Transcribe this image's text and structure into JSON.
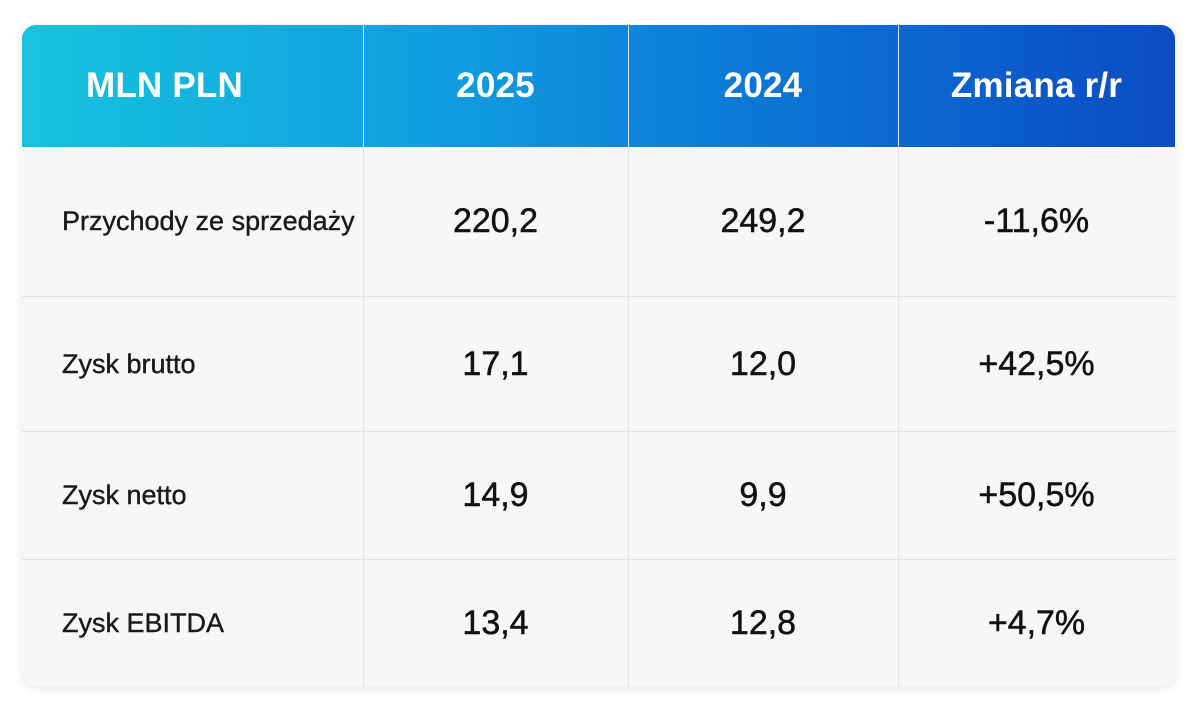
{
  "table": {
    "headers": [
      "MLN PLN",
      "2025",
      "2024",
      "Zmiana r/r"
    ],
    "rows": [
      {
        "label": "Przychody ze sprzedaży",
        "y2025": "220,2",
        "y2024": "249,2",
        "change": "-11,6%"
      },
      {
        "label": "Zysk brutto",
        "y2025": "17,1",
        "y2024": "12,0",
        "change": "+42,5%"
      },
      {
        "label": "Zysk netto",
        "y2025": "14,9",
        "y2024": "9,9",
        "change": "+50,5%"
      },
      {
        "label": "Zysk EBITDA",
        "y2025": "13,4",
        "y2024": "12,8",
        "change": "+4,7%"
      }
    ]
  },
  "colors": {
    "header_gradient_start": "#17c3dc",
    "header_gradient_end": "#0c4bc4",
    "body_background": "#f7f7f8",
    "grid_line": "#e3e3e6",
    "text": "#111111"
  }
}
